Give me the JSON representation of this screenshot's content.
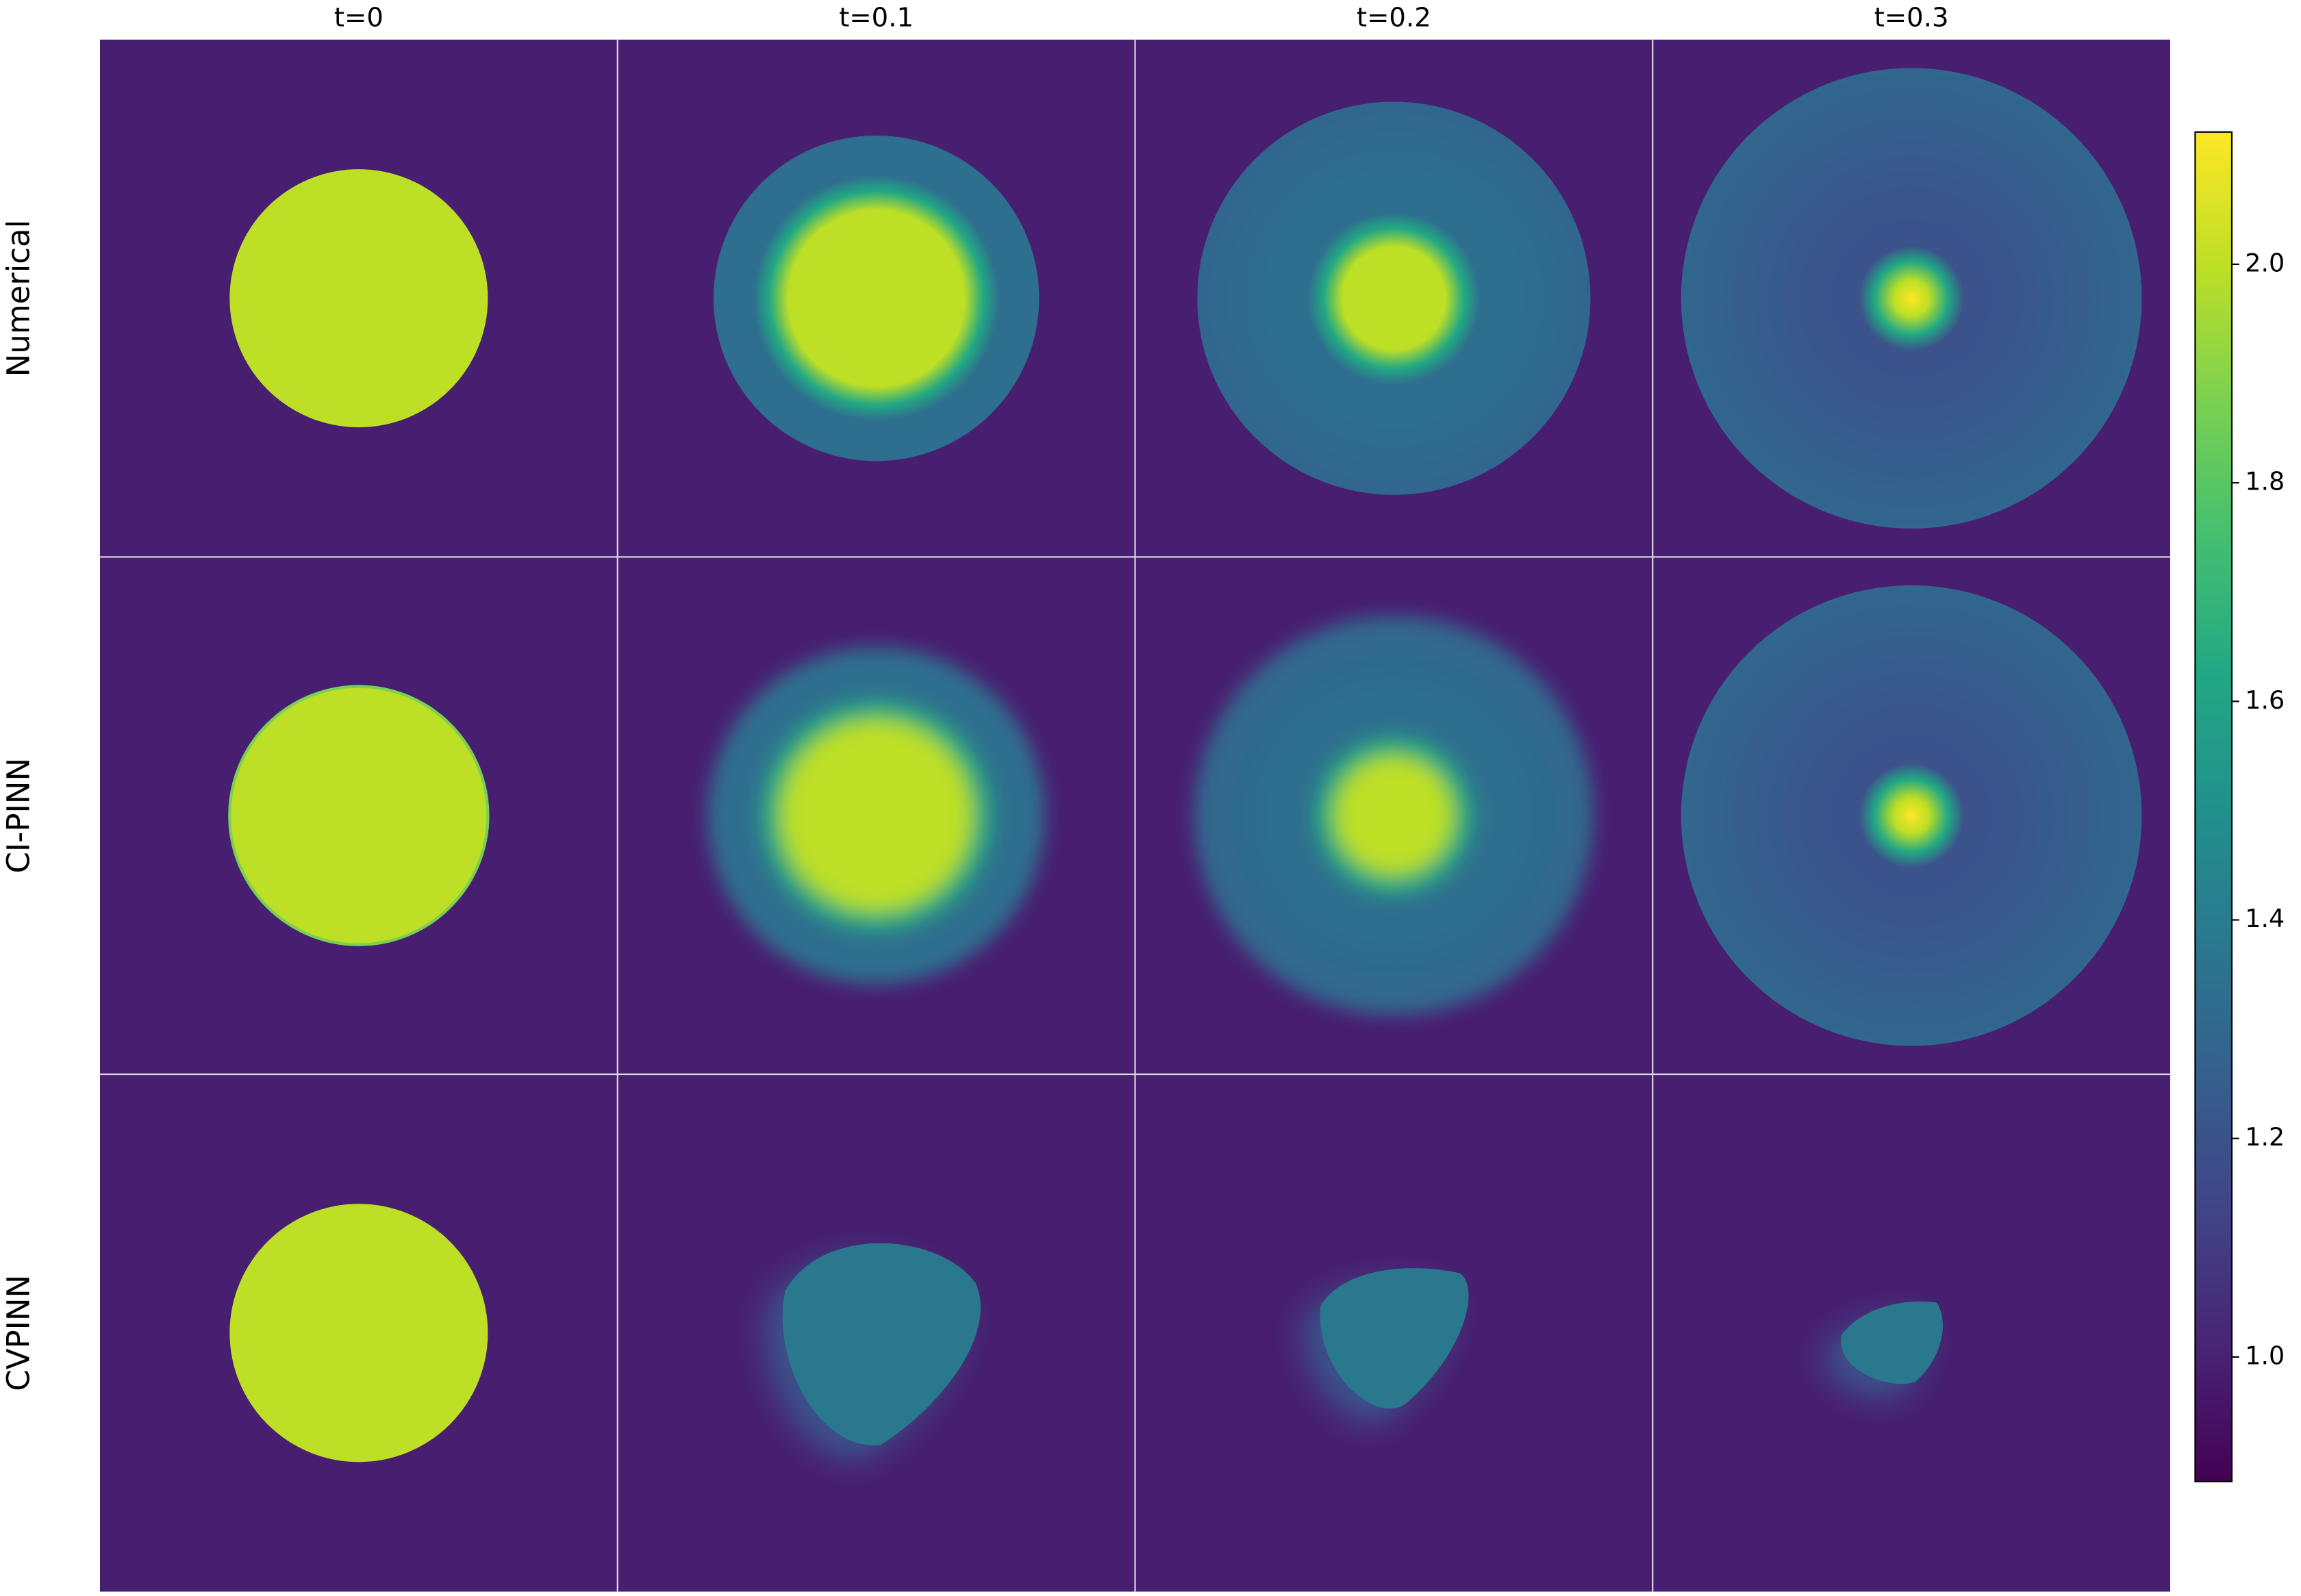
{
  "chart_data": {
    "type": "heatmap",
    "columns": [
      "t=0",
      "t=0.1",
      "t=0.2",
      "t=0.3"
    ],
    "rows": [
      "Numerical",
      "CI-PINN",
      "CVPINN"
    ],
    "clim": [
      0.886,
      2.121
    ],
    "cticks": [
      {
        "value": 1,
        "label": "1.0"
      },
      {
        "value": 1.2,
        "label": "1.2"
      },
      {
        "value": 1.4,
        "label": "1.4"
      },
      {
        "value": 1.6,
        "label": "1.6"
      },
      {
        "value": 1.8,
        "label": "1.8"
      },
      {
        "value": 2,
        "label": "2.0"
      }
    ],
    "colormap": "viridis"
  }
}
